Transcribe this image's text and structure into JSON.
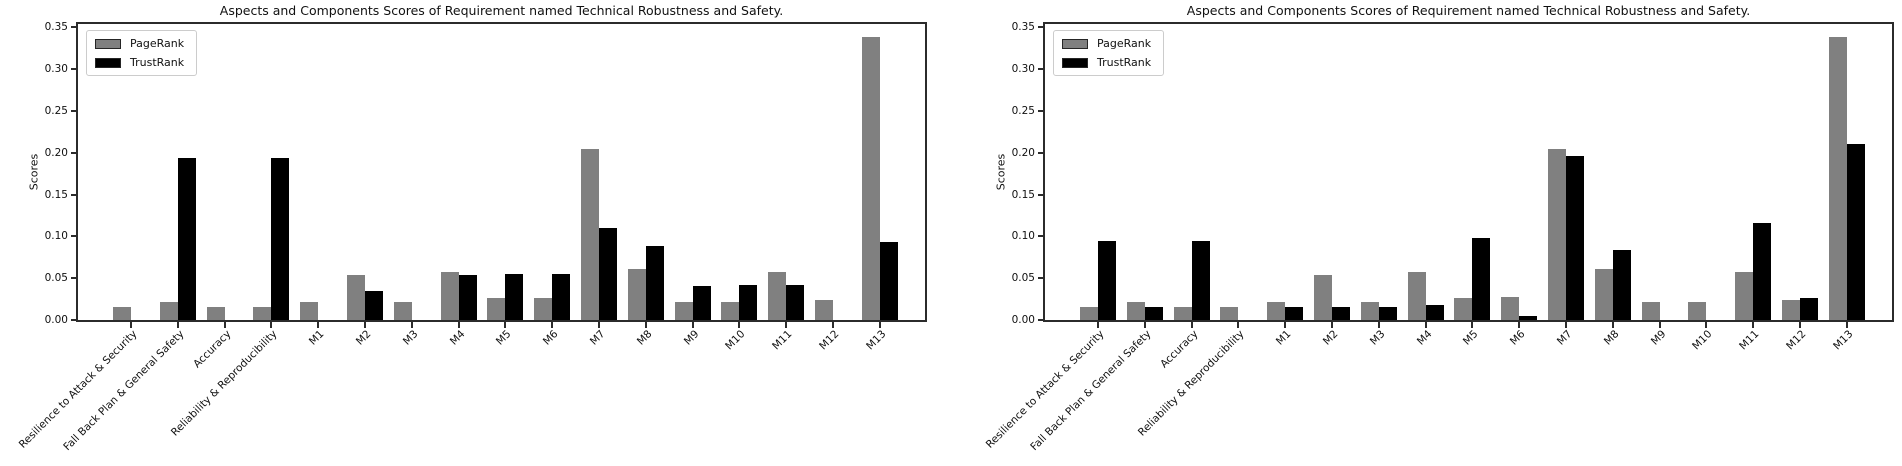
{
  "chart_data": [
    {
      "type": "bar",
      "title": "Aspects and Components Scores of Requirement named Technical Robustness and Safety.",
      "xlabel": "",
      "ylabel": "Scores",
      "ylim": [
        0,
        0.35
      ],
      "yticks": [
        0.0,
        0.05,
        0.1,
        0.15,
        0.2,
        0.25,
        0.3,
        0.35
      ],
      "grid": false,
      "legend_position": "upper left",
      "categories": [
        "Resilience to Attack & Security",
        "Fall Back Plan & General Safety",
        "Accuracy",
        "Reliability & Reproducibility",
        "M1",
        "M2",
        "M3",
        "M4",
        "M5",
        "M6",
        "M7",
        "M8",
        "M9",
        "M10",
        "M11",
        "M12",
        "M13"
      ],
      "series": [
        {
          "name": "PageRank",
          "color": "#808080",
          "values": [
            0.016,
            0.021,
            0.016,
            0.016,
            0.021,
            0.054,
            0.021,
            0.057,
            0.026,
            0.026,
            0.204,
            0.061,
            0.022,
            0.022,
            0.058,
            0.024,
            0.339
          ]
        },
        {
          "name": "TrustRank",
          "color": "#000000",
          "values": [
            0,
            0.194,
            0,
            0.194,
            0,
            0.035,
            0,
            0.054,
            0.055,
            0.055,
            0.11,
            0.088,
            0.041,
            0.042,
            0.042,
            0,
            0.093
          ]
        }
      ]
    },
    {
      "type": "bar",
      "title": "Aspects and Components Scores of Requirement named Technical Robustness and Safety.",
      "xlabel": "",
      "ylabel": "Scores",
      "ylim": [
        0,
        0.35
      ],
      "yticks": [
        0.0,
        0.05,
        0.1,
        0.15,
        0.2,
        0.25,
        0.3,
        0.35
      ],
      "grid": false,
      "legend_position": "upper left",
      "categories": [
        "Resilience to Attack & Security",
        "Fall Back Plan & General Safety",
        "Accuracy",
        "Reliability & Reproducibility",
        "M1",
        "M2",
        "M3",
        "M4",
        "M5",
        "M6",
        "M7",
        "M8",
        "M9",
        "M10",
        "M11",
        "M12",
        "M13"
      ],
      "series": [
        {
          "name": "PageRank",
          "color": "#808080",
          "values": [
            0.016,
            0.021,
            0.016,
            0.016,
            0.021,
            0.054,
            0.021,
            0.058,
            0.026,
            0.027,
            0.204,
            0.061,
            0.021,
            0.021,
            0.058,
            0.024,
            0.339
          ]
        },
        {
          "name": "TrustRank",
          "color": "#000000",
          "values": [
            0.094,
            0.016,
            0.094,
            0,
            0.016,
            0.016,
            0.016,
            0.018,
            0.098,
            0.005,
            0.196,
            0.084,
            0,
            0,
            0.116,
            0.026,
            0.21
          ]
        }
      ]
    }
  ]
}
